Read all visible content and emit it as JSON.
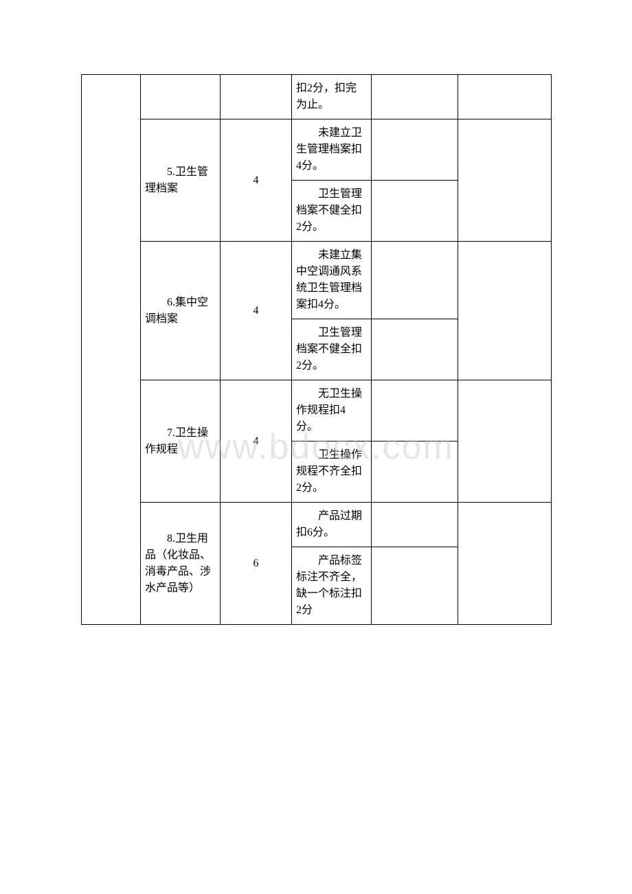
{
  "watermark": "www.bdocx.com",
  "table": {
    "columns": {
      "col1_width": 86,
      "col2_width": 116,
      "col3_width": 104,
      "col4_width": 116,
      "col5_width": 126,
      "col6_width": 136
    },
    "rows": [
      {
        "col2": "",
        "col3": "",
        "col4": "扣2分，扣完为止。",
        "col5": "",
        "col6": ""
      },
      {
        "col2": "5.卫生管理档案",
        "col3": "4",
        "col4_a": "未建立卫生管理档案扣4分。",
        "col4_b": "卫生管理档案不健全扣2分。",
        "col5_a": "",
        "col5_b": "",
        "col6": ""
      },
      {
        "col2": "6.集中空调档案",
        "col3": "4",
        "col4_a": "未建立集中空调通风系统卫生管理档案扣4分。",
        "col4_b": "卫生管理档案不健全扣2分。",
        "col5_a": "",
        "col5_b": "",
        "col6": ""
      },
      {
        "col2": "7.卫生操作规程",
        "col3": "4",
        "col4_a": "无卫生操作规程扣4分。",
        "col4_b": "卫生操作规程不齐全扣2分。",
        "col5_a": "",
        "col5_b": "",
        "col6": ""
      },
      {
        "col2": "8.卫生用品（化妆品、消毒产品、涉水产品等）",
        "col3": "6",
        "col4_a": "产品过期扣6分。",
        "col4_b": "产品标签标注不齐全，缺一个标注扣2分",
        "col5_a": "",
        "col5_b": "",
        "col6": ""
      }
    ]
  },
  "styling": {
    "font_family": "SimSun",
    "font_size": 16,
    "border_color": "#000000",
    "background_color": "#ffffff",
    "text_color": "#000000",
    "watermark_color": "rgba(200, 200, 200, 0.45)",
    "watermark_fontsize": 52
  }
}
